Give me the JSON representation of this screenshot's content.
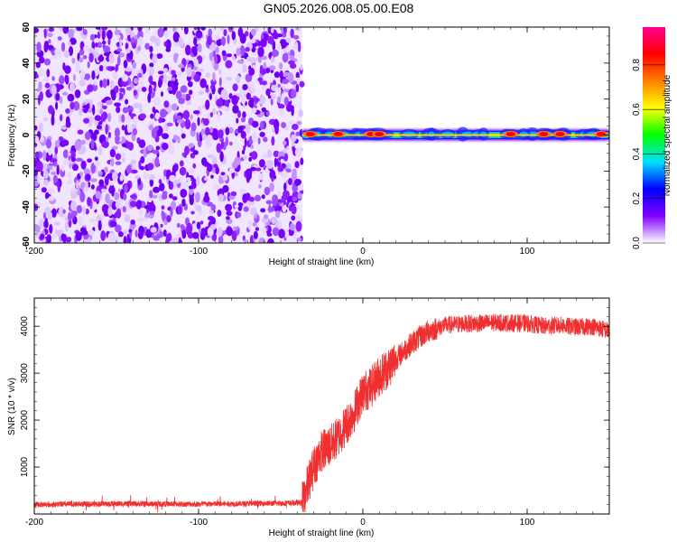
{
  "title": "GN05.2026.008.05.00.E08",
  "chart_data": [
    {
      "type": "heatmap",
      "xlabel": "Height of straight line (km)",
      "ylabel": "Frequency (Hz)",
      "xlim": [
        -200,
        150
      ],
      "ylim": [
        -60,
        60
      ],
      "xticks": [
        -200,
        -100,
        0,
        100
      ],
      "xtick_labels": [
        "-200",
        "-100",
        "0",
        "100"
      ],
      "yticks": [
        -60,
        -40,
        -20,
        0,
        20,
        40,
        60
      ],
      "ytick_labels": [
        "-60",
        "-40",
        "-20",
        "0",
        "20",
        "40",
        "60"
      ],
      "colorbar": {
        "label": "Normalized spectral amplitude",
        "range": [
          0,
          0.97
        ],
        "ticks": [
          0.0,
          0.2,
          0.4,
          0.6,
          0.8
        ],
        "tick_labels": [
          "0.0",
          "0.2",
          "0.4",
          "0.6",
          "0.8"
        ],
        "colors": [
          "#ffffff",
          "#8000ff",
          "#0000ff",
          "#00e0ff",
          "#00ff00",
          "#ffff00",
          "#ff8000",
          "#ff0000",
          "#ff0090"
        ]
      },
      "noise_region_x": [
        -200,
        -37
      ],
      "signal_band": {
        "x_start": -37,
        "x_end": 150,
        "center_frequency": 0,
        "peak_x": [
          -32,
          -15,
          5,
          10,
          90,
          110,
          120,
          145
        ]
      }
    },
    {
      "type": "line",
      "xlabel": "Height of straight line (km)",
      "ylabel": "SNR (10 * v/v)",
      "xlim": [
        -200,
        150
      ],
      "ylim": [
        0,
        4600
      ],
      "xticks": [
        -200,
        -100,
        0,
        100
      ],
      "xtick_labels": [
        "-200",
        "-100",
        "0",
        "100"
      ],
      "yticks": [
        1000,
        2000,
        3000,
        4000
      ],
      "ytick_labels": [
        "1000",
        "2000",
        "3000",
        "4000"
      ],
      "line_color": "#f03030",
      "series": [
        {
          "name": "SNR",
          "x": [
            -200,
            -150,
            -100,
            -50,
            -37,
            -30,
            -25,
            -20,
            -15,
            -10,
            -5,
            0,
            5,
            10,
            15,
            20,
            30,
            40,
            50,
            60,
            70,
            80,
            90,
            100,
            110,
            120,
            130,
            140,
            150
          ],
          "values": [
            200,
            220,
            210,
            230,
            240,
            1000,
            1350,
            1450,
            1650,
            1900,
            2200,
            2600,
            2700,
            2950,
            3100,
            3300,
            3650,
            3900,
            4020,
            4050,
            4060,
            4080,
            4070,
            4060,
            4000,
            4020,
            3980,
            4000,
            3900
          ]
        }
      ]
    }
  ]
}
